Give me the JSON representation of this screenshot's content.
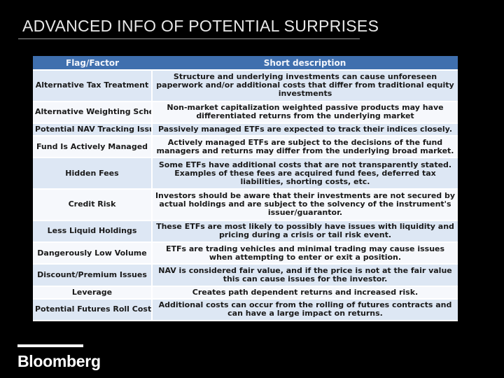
{
  "slide": {
    "title": "ADVANCED INFO OF POTENTIAL SURPRISES"
  },
  "table": {
    "headers": [
      "Flag/Factor",
      "Short description"
    ],
    "rows": [
      {
        "factor": "Alternative Tax Treatment",
        "description": "Structure and underlying investments can cause unforeseen paperwork and/or additional costs that differ from traditional equity investments"
      },
      {
        "factor": "Alternative Weighting Scheme",
        "description": "Non-market capitalization weighted passive products may have differentiated returns from the underlying market"
      },
      {
        "factor": "Potential NAV Tracking Issues",
        "description": "Passively managed ETFs are expected to track their indices closely."
      },
      {
        "factor": "Fund Is Actively Managed",
        "description": "Actively managed ETFs are subject to the decisions of the fund managers and returns may differ from the underlying broad market."
      },
      {
        "factor": "Hidden Fees",
        "description": "Some ETFs have additional costs that are not transparently stated. Examples of these fees are acquired fund fees, deferred tax liabilities, shorting costs, etc."
      },
      {
        "factor": "Credit Risk",
        "description": "Investors should be aware that their investments are not secured by actual holdings and are subject to the solvency of the instrument's issuer/guarantor."
      },
      {
        "factor": "Less Liquid Holdings",
        "description": "These ETFs are most likely to possibly have issues with liquidity and pricing during a crisis or tail risk event."
      },
      {
        "factor": "Dangerously Low Volume",
        "description": "ETFs are trading vehicles and minimal trading may cause issues when attempting to enter or exit a position."
      },
      {
        "factor": "Discount/Premium Issues",
        "description": "NAV is considered fair value, and if the price is not at the fair value this can cause issues for the investor."
      },
      {
        "factor": "Leverage",
        "description": "Creates path dependent returns and increased risk."
      },
      {
        "factor": "Potential Futures Roll Costs",
        "description": "Additional costs can occur from the rolling of futures contracts and can have a large impact on returns."
      }
    ]
  },
  "brand": {
    "logo_text": "Bloomberg"
  },
  "colors": {
    "background": "#000000",
    "header_blue": "#3f6fae",
    "row_band": "#dde7f4"
  }
}
